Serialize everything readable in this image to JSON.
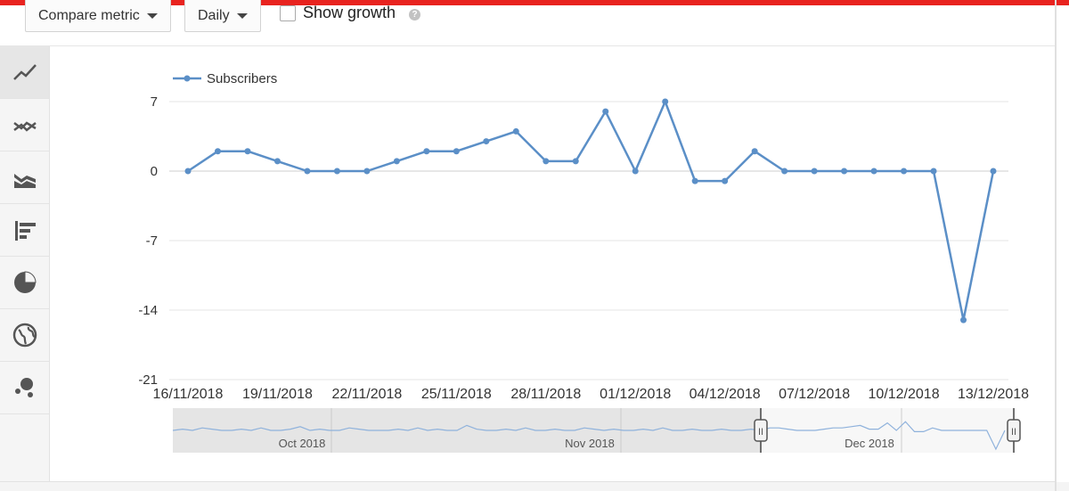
{
  "toolbar": {
    "compare_label": "Compare metric",
    "interval_label": "Daily",
    "growth_label": "Show growth",
    "help_glyph": "?"
  },
  "sidebar": {
    "items": [
      {
        "icon": "line-chart-icon",
        "active": true
      },
      {
        "icon": "multi-line-chart-icon",
        "active": false
      },
      {
        "icon": "stacked-area-chart-icon",
        "active": false
      },
      {
        "icon": "bar-chart-icon",
        "active": false
      },
      {
        "icon": "pie-chart-icon",
        "active": false
      },
      {
        "icon": "globe-map-icon",
        "active": false
      },
      {
        "icon": "bubble-chart-icon",
        "active": false
      }
    ]
  },
  "colors": {
    "accent_red": "#e8231f",
    "series": "#5b8fc7",
    "grid": "#e6e6e6",
    "navigator_bg": "#e5e5e5"
  },
  "chart_data": {
    "type": "line",
    "series": [
      {
        "name": "Subscribers",
        "values": [
          0,
          2,
          2,
          1,
          0,
          0,
          0,
          1,
          2,
          2,
          3,
          4,
          1,
          1,
          6,
          0,
          7,
          -1,
          -1,
          2,
          0,
          0,
          0,
          0,
          0,
          0,
          -15,
          0
        ]
      }
    ],
    "x": [
      "16/11/2018",
      "17/11/2018",
      "18/11/2018",
      "19/11/2018",
      "20/11/2018",
      "21/11/2018",
      "22/11/2018",
      "23/11/2018",
      "24/11/2018",
      "25/11/2018",
      "26/11/2018",
      "27/11/2018",
      "28/11/2018",
      "29/11/2018",
      "30/11/2018",
      "01/12/2018",
      "02/12/2018",
      "03/12/2018",
      "04/12/2018",
      "05/12/2018",
      "06/12/2018",
      "07/12/2018",
      "08/12/2018",
      "09/12/2018",
      "10/12/2018",
      "11/12/2018",
      "12/12/2018",
      "13/12/2018"
    ],
    "x_tick_labels": [
      "16/11/2018",
      "19/11/2018",
      "22/11/2018",
      "25/11/2018",
      "28/11/2018",
      "01/12/2018",
      "04/12/2018",
      "07/12/2018",
      "10/12/2018",
      "13/12/2018"
    ],
    "y_ticks": [
      7,
      0,
      -7,
      -14,
      -21
    ],
    "ylim": [
      -21,
      7
    ],
    "legend": "top-left",
    "grid": true,
    "navigator": {
      "month_labels": [
        "Oct 2018",
        "Nov 2018",
        "Dec 2018"
      ],
      "selection": [
        "16/11/2018",
        "13/12/2018"
      ],
      "handle_glyph": "II"
    }
  }
}
